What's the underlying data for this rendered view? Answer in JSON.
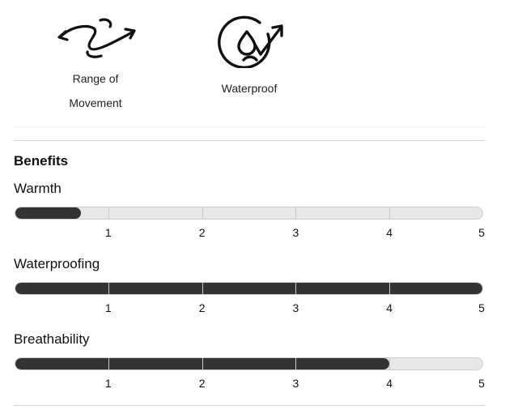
{
  "features": [
    {
      "label_line1": "Range of",
      "label_line2": "Movement",
      "icon": "range-of-movement-icon"
    },
    {
      "label": "Waterproof",
      "icon": "waterproof-icon"
    }
  ],
  "benefits": {
    "title": "Benefits",
    "scale_max": 5,
    "ticks": [
      "1",
      "2",
      "3",
      "4",
      "5"
    ],
    "ratings": [
      {
        "name": "Warmth",
        "value": 0.7
      },
      {
        "name": "Waterproofing",
        "value": 5
      },
      {
        "name": "Breathability",
        "value": 4
      }
    ]
  },
  "colors": {
    "fill": "#333333",
    "track": "#e7e7e7",
    "divider": "#d9d9d9"
  }
}
